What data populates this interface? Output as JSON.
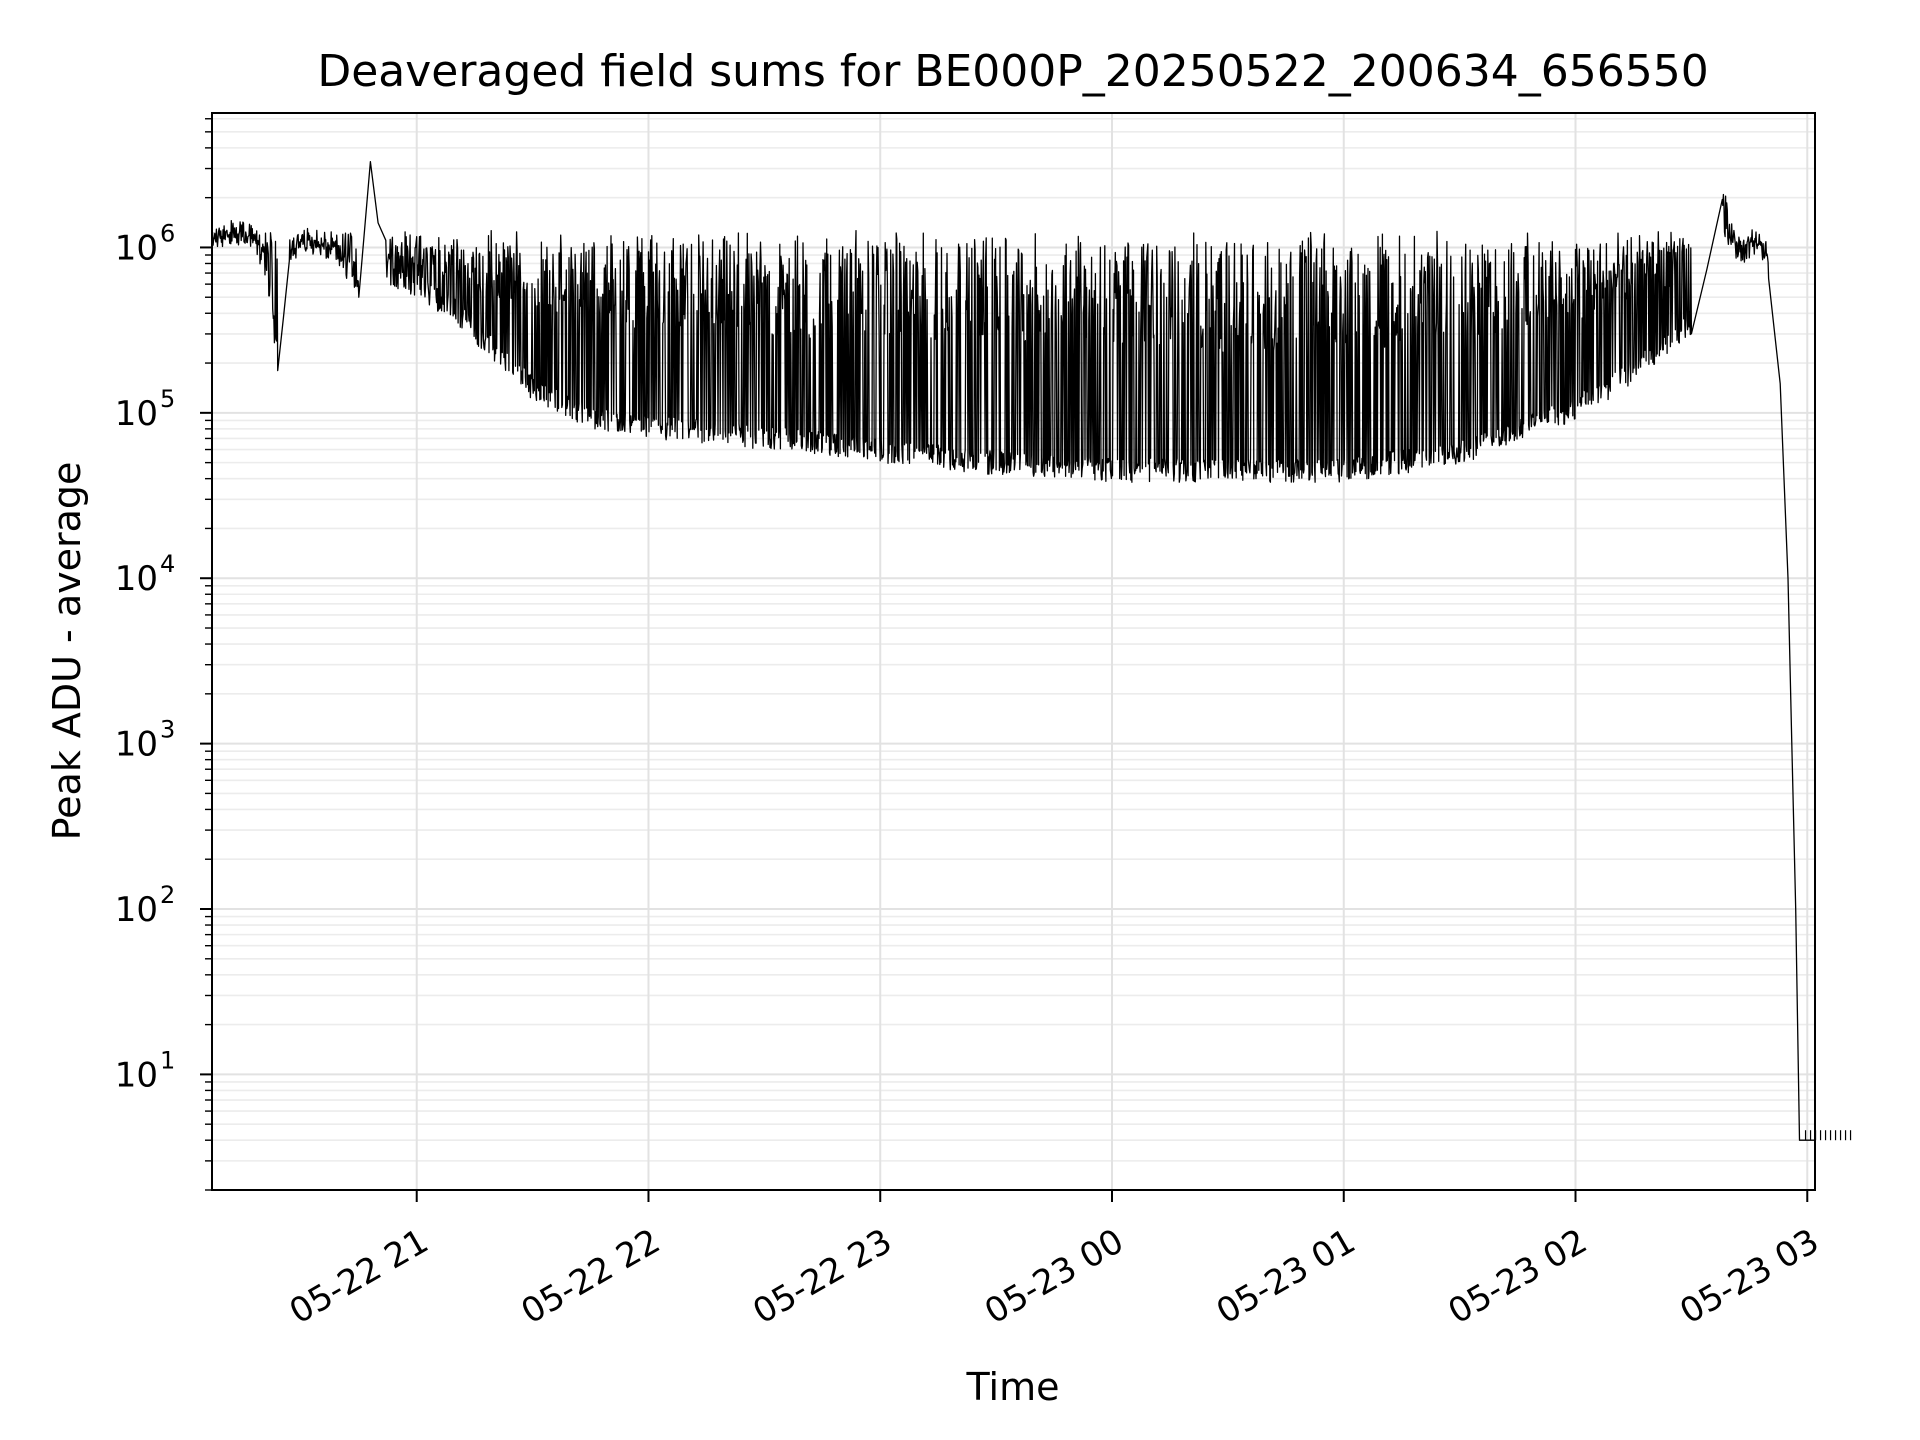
{
  "chart_data": {
    "type": "line",
    "title": "Deaveraged field sums for BE000P_20250522_200634_656550",
    "xlabel": "Time",
    "ylabel": "Peak ADU - average",
    "yscale": "log",
    "ylim": [
      2,
      6500000
    ],
    "xlim": [
      "2025-05-22 20:07",
      "2025-05-23 03:02"
    ],
    "grid": true,
    "x_ticks": [
      {
        "t": "2025-05-22 21:00",
        "label": "05-22 21"
      },
      {
        "t": "2025-05-22 22:00",
        "label": "05-22 22"
      },
      {
        "t": "2025-05-22 23:00",
        "label": "05-22 23"
      },
      {
        "t": "2025-05-23 00:00",
        "label": "05-23 00"
      },
      {
        "t": "2025-05-23 01:00",
        "label": "05-23 01"
      },
      {
        "t": "2025-05-23 02:00",
        "label": "05-23 02"
      },
      {
        "t": "2025-05-23 03:00",
        "label": "05-23 03"
      }
    ],
    "y_ticks": [
      {
        "value": 10,
        "base": "10",
        "exp": "1"
      },
      {
        "value": 100,
        "base": "10",
        "exp": "2"
      },
      {
        "value": 1000,
        "base": "10",
        "exp": "3"
      },
      {
        "value": 10000,
        "base": "10",
        "exp": "4"
      },
      {
        "value": 100000,
        "base": "10",
        "exp": "5"
      },
      {
        "value": 1000000,
        "base": "10",
        "exp": "6"
      }
    ],
    "series": [
      {
        "color": "#000000",
        "points": [
          [
            "2025-05-22 20:07",
            900000
          ],
          [
            "2025-05-22 20:12",
            1100000
          ],
          [
            "2025-05-22 20:17",
            1000000
          ],
          [
            "2025-05-22 20:21",
            650000
          ],
          [
            "2025-05-22 20:24",
            180000
          ],
          [
            "2025-05-22 20:27",
            800000
          ],
          [
            "2025-05-22 20:32",
            950000
          ],
          [
            "2025-05-22 20:40",
            700000
          ],
          [
            "2025-05-22 20:45",
            500000
          ],
          [
            "2025-05-22 20:48",
            3300000
          ],
          [
            "2025-05-22 20:52",
            600000
          ],
          [
            "2025-05-22 21:00",
            500000
          ],
          [
            "2025-05-22 21:10",
            350000
          ],
          [
            "2025-05-22 21:20",
            200000
          ],
          [
            "2025-05-22 21:30",
            120000
          ],
          [
            "2025-05-22 21:45",
            80000
          ],
          [
            "2025-05-22 22:00",
            70000
          ],
          [
            "2025-05-22 22:30",
            60000
          ],
          [
            "2025-05-22 23:00",
            50000
          ],
          [
            "2025-05-22 23:30",
            42000
          ],
          [
            "2025-05-23 00:00",
            38000
          ],
          [
            "2025-05-23 00:30",
            38000
          ],
          [
            "2025-05-23 01:00",
            38000
          ],
          [
            "2025-05-23 01:30",
            48000
          ],
          [
            "2025-05-23 02:00",
            90000
          ],
          [
            "2025-05-23 02:15",
            150000
          ],
          [
            "2025-05-23 02:30",
            300000
          ],
          [
            "2025-05-23 02:38",
            1800000
          ],
          [
            "2025-05-23 02:42",
            750000
          ],
          [
            "2025-05-23 02:47",
            900000
          ],
          [
            "2025-05-23 02:50",
            650000
          ],
          [
            "2025-05-23 02:53",
            150000
          ],
          [
            "2025-05-23 02:55",
            10000
          ],
          [
            "2025-05-23 02:57",
            100
          ],
          [
            "2025-05-23 02:58",
            4
          ],
          [
            "2025-05-23 03:02",
            4
          ]
        ]
      }
    ]
  }
}
